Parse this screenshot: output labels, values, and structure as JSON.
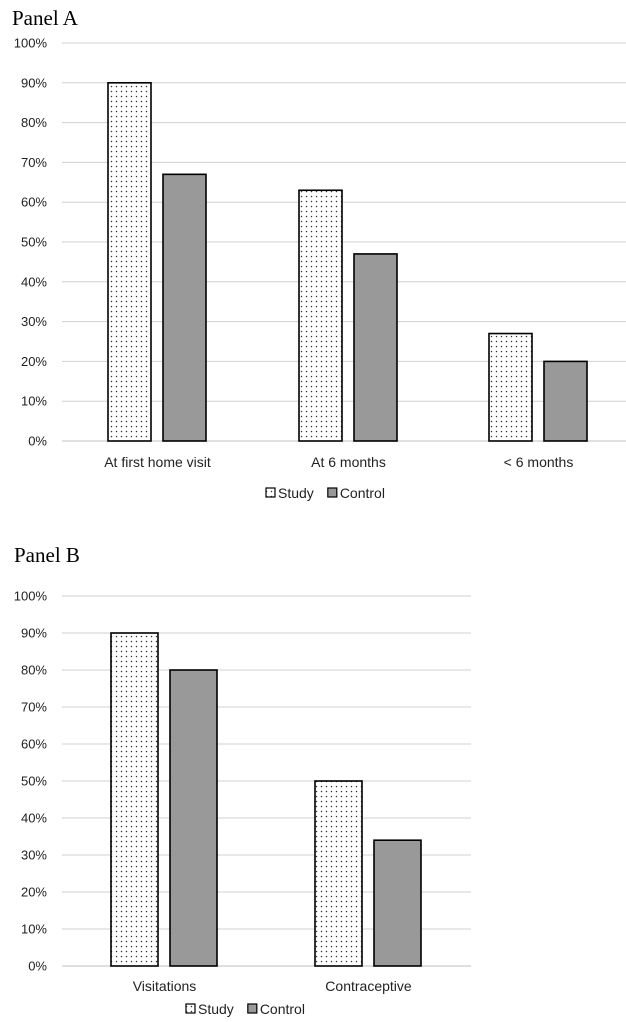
{
  "chart_data": [
    {
      "type": "bar",
      "title": "Panel A",
      "categories": [
        "At first home visit",
        "At 6 months",
        "< 6 months"
      ],
      "series": [
        {
          "name": "Study",
          "values": [
            90,
            63,
            27
          ],
          "pattern": "dots"
        },
        {
          "name": "Control",
          "values": [
            67,
            47,
            20
          ],
          "color": "#999999"
        }
      ],
      "ylim": [
        0,
        100
      ],
      "yticks": [
        "0%",
        "10%",
        "20%",
        "30%",
        "40%",
        "50%",
        "60%",
        "70%",
        "80%",
        "90%",
        "100%"
      ],
      "grid": true,
      "legend": "bottom"
    },
    {
      "type": "bar",
      "title": "Panel B",
      "categories": [
        "Visitations",
        "Contraceptive"
      ],
      "series": [
        {
          "name": "Study",
          "values": [
            90,
            50
          ],
          "pattern": "dots"
        },
        {
          "name": "Control",
          "values": [
            80,
            34
          ],
          "color": "#999999"
        }
      ],
      "ylim": [
        0,
        100
      ],
      "yticks": [
        "0%",
        "10%",
        "20%",
        "30%",
        "40%",
        "50%",
        "60%",
        "70%",
        "80%",
        "90%",
        "100%"
      ],
      "grid": true,
      "legend": "bottom"
    }
  ]
}
